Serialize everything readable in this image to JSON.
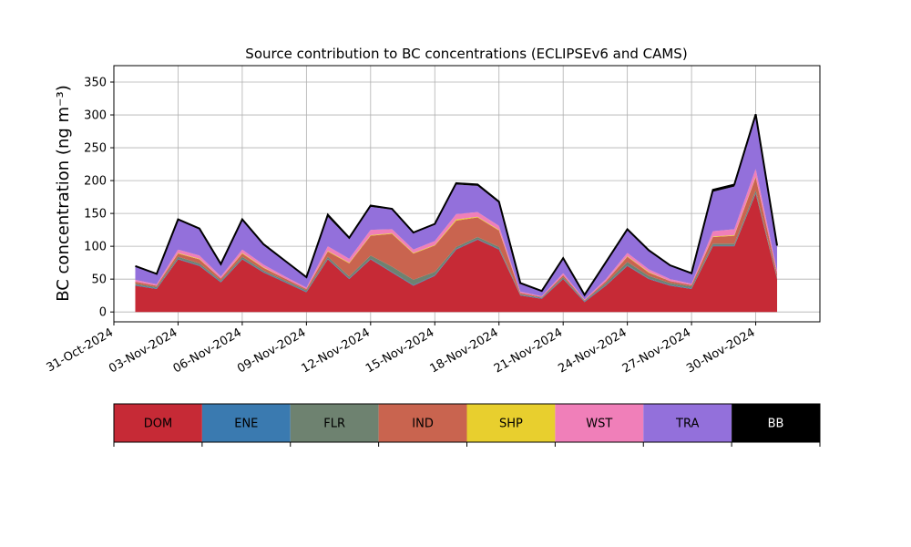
{
  "chart_data": {
    "type": "area",
    "title": "Source contribution to BC concentrations (ECLIPSEv6 and CAMS)",
    "ylabel": "BC concentration (ng m⁻³)",
    "xlabel": "",
    "xlim": [
      "2024-10-31",
      "2024-12-03"
    ],
    "ylim": [
      -15,
      375
    ],
    "grid": true,
    "x_tick_labels": [
      "31-Oct-2024",
      "03-Nov-2024",
      "06-Nov-2024",
      "09-Nov-2024",
      "12-Nov-2024",
      "15-Nov-2024",
      "18-Nov-2024",
      "21-Nov-2024",
      "24-Nov-2024",
      "27-Nov-2024",
      "30-Nov-2024"
    ],
    "x_tick_dates": [
      "2024-10-31",
      "2024-11-03",
      "2024-11-06",
      "2024-11-09",
      "2024-11-12",
      "2024-11-15",
      "2024-11-18",
      "2024-11-21",
      "2024-11-24",
      "2024-11-27",
      "2024-11-30"
    ],
    "y_ticks": [
      0,
      50,
      100,
      150,
      200,
      250,
      300,
      350
    ],
    "x": [
      "2024-11-01",
      "2024-11-02",
      "2024-11-03",
      "2024-11-04",
      "2024-11-05",
      "2024-11-06",
      "2024-11-07",
      "2024-11-08",
      "2024-11-09",
      "2024-11-10",
      "2024-11-11",
      "2024-11-12",
      "2024-11-13",
      "2024-11-14",
      "2024-11-15",
      "2024-11-16",
      "2024-11-17",
      "2024-11-18",
      "2024-11-19",
      "2024-11-20",
      "2024-11-21",
      "2024-11-22",
      "2024-11-23",
      "2024-11-24",
      "2024-11-25",
      "2024-11-26",
      "2024-11-27",
      "2024-11-28",
      "2024-11-29",
      "2024-11-30",
      "2024-12-01"
    ],
    "series": [
      {
        "name": "DOM",
        "color": "#c62a36",
        "values": [
          40,
          35,
          80,
          70,
          45,
          80,
          60,
          45,
          30,
          80,
          50,
          80,
          60,
          40,
          55,
          95,
          110,
          95,
          25,
          20,
          50,
          15,
          40,
          70,
          50,
          40,
          35,
          100,
          100,
          180,
          50
        ]
      },
      {
        "name": "ENE",
        "color": "#3a7ab0",
        "values": [
          1,
          1,
          1,
          1,
          1,
          1,
          1,
          1,
          1,
          1,
          1,
          1,
          1,
          1,
          1,
          1,
          1,
          1,
          1,
          1,
          1,
          1,
          1,
          1,
          1,
          1,
          1,
          1,
          1,
          1,
          1
        ]
      },
      {
        "name": "FLR",
        "color": "#6e8270",
        "values": [
          2,
          2,
          3,
          3,
          2,
          3,
          2,
          2,
          2,
          3,
          3,
          5,
          8,
          8,
          5,
          3,
          3,
          3,
          1,
          1,
          2,
          1,
          3,
          5,
          4,
          3,
          3,
          3,
          3,
          4,
          2
        ]
      },
      {
        "name": "IND",
        "color": "#c9644f",
        "values": [
          3,
          2,
          5,
          6,
          3,
          5,
          4,
          3,
          2,
          8,
          20,
          30,
          50,
          40,
          40,
          40,
          30,
          25,
          2,
          1,
          3,
          1,
          3,
          8,
          5,
          3,
          2,
          10,
          12,
          20,
          5
        ]
      },
      {
        "name": "SHP",
        "color": "#e8cf2e",
        "values": [
          0,
          0,
          1,
          1,
          0,
          1,
          1,
          0,
          0,
          1,
          1,
          1,
          1,
          1,
          1,
          2,
          1,
          1,
          0,
          0,
          0,
          0,
          0,
          1,
          1,
          0,
          0,
          1,
          1,
          1,
          0
        ]
      },
      {
        "name": "WST",
        "color": "#f07fb9",
        "values": [
          3,
          2,
          5,
          5,
          3,
          5,
          4,
          3,
          2,
          7,
          6,
          8,
          6,
          5,
          6,
          8,
          7,
          6,
          2,
          1,
          3,
          1,
          3,
          5,
          4,
          3,
          2,
          8,
          9,
          12,
          4
        ]
      },
      {
        "name": "TRA",
        "color": "#9370db",
        "values": [
          20,
          15,
          45,
          40,
          18,
          45,
          30,
          23,
          15,
          45,
          30,
          35,
          30,
          25,
          25,
          45,
          40,
          35,
          12,
          7,
          22,
          6,
          25,
          35,
          28,
          20,
          15,
          60,
          65,
          80,
          38
        ]
      },
      {
        "name": "BB",
        "color": "#000000",
        "values": [
          1,
          1,
          1,
          1,
          1,
          1,
          1,
          1,
          1,
          3,
          2,
          2,
          1,
          1,
          1,
          2,
          2,
          2,
          1,
          1,
          1,
          1,
          1,
          1,
          1,
          1,
          1,
          3,
          3,
          3,
          1
        ]
      }
    ],
    "legend_position": "bottom"
  }
}
